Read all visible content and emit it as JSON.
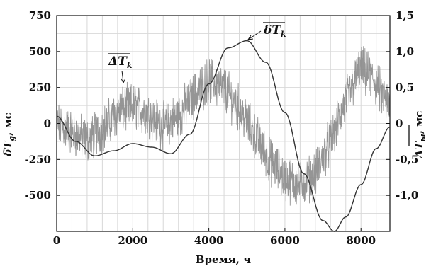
{
  "chart_data": {
    "type": "line",
    "xlabel": "Время, ч",
    "xlim": [
      0,
      8760
    ],
    "x_ticks": [
      0,
      2000,
      4000,
      6000,
      8000
    ],
    "ylabel_left": {
      "symbol": "δT",
      "sub": "g",
      "unit": ", мс"
    },
    "ylim_left": [
      -750,
      750
    ],
    "y_ticks_left": [
      "750",
      "500",
      "250",
      "0",
      "-250",
      "-500"
    ],
    "y_tick_values_left": [
      750,
      500,
      250,
      0,
      -250,
      -500
    ],
    "ylabel_right": {
      "symbol": "ΔT",
      "sub": "ы",
      "unit": ", мс"
    },
    "ylim_right": [
      -1.5,
      1.5
    ],
    "y_ticks_right": [
      "1,5",
      "1,0",
      "0,5",
      "0",
      "-0,5",
      "-1,0"
    ],
    "y_tick_values_right": [
      1.5,
      1.0,
      0.5,
      0,
      -0.5,
      -1.0
    ],
    "grid": true,
    "series": [
      {
        "label": {
          "symbol": "ΔT",
          "sub": "k",
          "overline": true
        },
        "axis": "left",
        "color": "#8a8a8a",
        "style": "noisy",
        "x": [
          0,
          400,
          800,
          1200,
          1600,
          2000,
          2400,
          2800,
          3200,
          3600,
          4000,
          4400,
          4800,
          5200,
          5600,
          6000,
          6400,
          6800,
          7200,
          7600,
          8000,
          8400,
          8760
        ],
        "y": [
          0,
          -60,
          -120,
          -40,
          80,
          120,
          70,
          -20,
          50,
          190,
          300,
          240,
          100,
          -80,
          -260,
          -380,
          -430,
          -350,
          -120,
          160,
          380,
          280,
          100
        ]
      },
      {
        "label": {
          "symbol": "δT",
          "sub": "k",
          "overline": true
        },
        "axis": "right",
        "color": "#333333",
        "style": "smooth",
        "x": [
          0,
          500,
          1000,
          1500,
          2000,
          2500,
          3000,
          3500,
          4000,
          4500,
          5000,
          5500,
          6000,
          6500,
          7000,
          7300,
          7600,
          8000,
          8400,
          8760
        ],
        "y": [
          0.1,
          -0.25,
          -0.45,
          -0.38,
          -0.28,
          -0.33,
          -0.42,
          -0.15,
          0.55,
          1.05,
          1.15,
          0.85,
          0.15,
          -0.7,
          -1.35,
          -1.5,
          -1.3,
          -0.85,
          -0.35,
          -0.05
        ]
      }
    ]
  }
}
